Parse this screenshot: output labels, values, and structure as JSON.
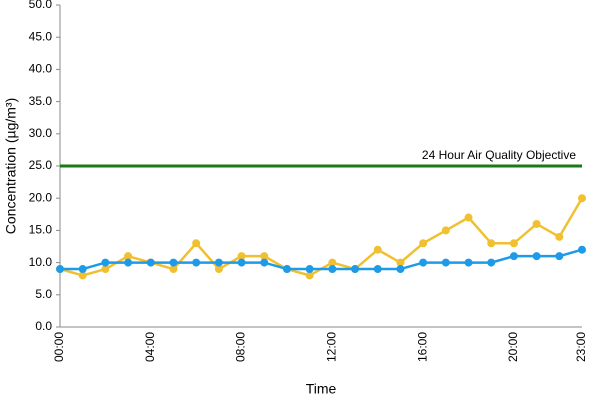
{
  "chart_data": {
    "type": "line",
    "y_label": "Concentration (µg/m³)",
    "x_label": "Time",
    "categories": [
      "00:00",
      null,
      null,
      null,
      "04:00",
      null,
      null,
      null,
      "08:00",
      null,
      null,
      null,
      "12:00",
      null,
      null,
      null,
      "16:00",
      null,
      null,
      null,
      "20:00",
      null,
      null,
      "23:00"
    ],
    "series": [
      {
        "color": "#f0c030",
        "values": [
          9,
          8,
          9,
          11,
          10,
          9,
          13,
          9,
          11,
          11,
          9,
          8,
          10,
          9,
          12,
          10,
          13,
          15,
          17,
          13,
          13,
          16,
          14,
          20
        ]
      },
      {
        "color": "#1e9be8",
        "values": [
          9,
          9,
          10,
          10,
          10,
          10,
          10,
          10,
          10,
          10,
          9,
          9,
          9,
          9,
          9,
          9,
          10,
          10,
          10,
          10,
          11,
          11,
          11,
          12
        ]
      }
    ],
    "reference_line": {
      "value": 25,
      "label": "24 Hour Air Quality Objective",
      "color": "#1a7a1a"
    },
    "ylim": [
      0,
      50
    ],
    "yticks": [
      {
        "value": 0,
        "label": "0.0"
      },
      {
        "value": 5,
        "label": "5.0"
      },
      {
        "value": 10,
        "label": "10.0"
      },
      {
        "value": 15,
        "label": "15.0"
      },
      {
        "value": 20,
        "label": "20.0"
      },
      {
        "value": 25,
        "label": "25.0"
      },
      {
        "value": 30,
        "label": "30.0"
      },
      {
        "value": 35,
        "label": "35.0"
      },
      {
        "value": 40,
        "label": "40.0"
      },
      {
        "value": 45,
        "label": "45.0"
      },
      {
        "value": 50,
        "label": "50.0"
      }
    ]
  }
}
